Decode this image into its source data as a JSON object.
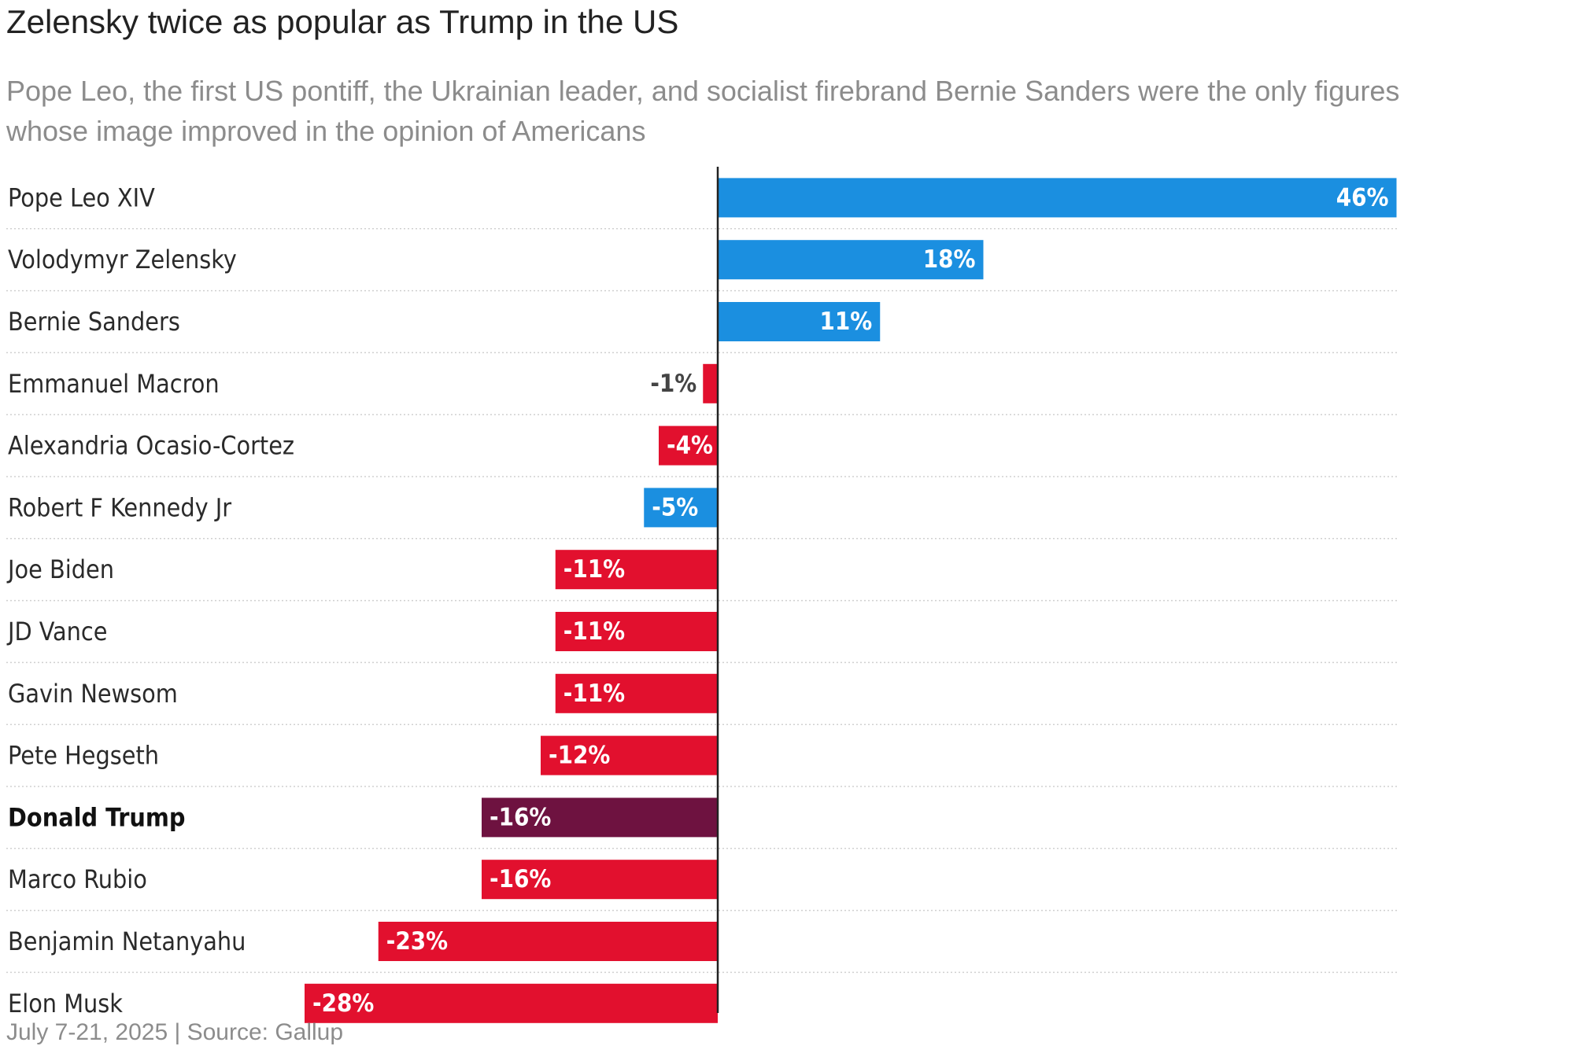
{
  "chart_data": {
    "type": "bar",
    "orientation": "horizontal",
    "title": "Zelensky twice as popular as Trump in the US",
    "subtitle": "Pope Leo, the first US pontiff, the Ukrainian leader, and socialist firebrand Bernie Sanders were the only figures whose image improved in the opinion of Americans",
    "footer": "July 7-21, 2025 | Source: Gallup",
    "value_format": "%",
    "grid": false,
    "categories": [
      "Pope Leo XIV",
      "Volodymyr Zelensky",
      "Bernie Sanders",
      "Emmanuel Macron",
      "Alexandria Ocasio-Cortez",
      "Robert F Kennedy Jr",
      "Joe Biden",
      "JD Vance",
      "Gavin Newsom",
      "Pete Hegseth",
      "Donald Trump",
      "Marco Rubio",
      "Benjamin Netanyahu",
      "Elon Musk"
    ],
    "values": [
      46,
      18,
      11,
      -1,
      -4,
      -5,
      -11,
      -11,
      -11,
      -12,
      -16,
      -16,
      -23,
      -28
    ],
    "value_labels": [
      "46%",
      "18%",
      "11%",
      "-1%",
      "-4%",
      "-5%",
      "-11%",
      "-11%",
      "-11%",
      "-12%",
      "-16%",
      "-16%",
      "-23%",
      "-28%"
    ],
    "bar_colors": [
      "#1b8fe0",
      "#1b8fe0",
      "#1b8fe0",
      "#e2102e",
      "#e2102e",
      "#1b8fe0",
      "#e2102e",
      "#e2102e",
      "#e2102e",
      "#e2102e",
      "#6e1240",
      "#e2102e",
      "#e2102e",
      "#e2102e"
    ],
    "highlighted_category": "Donald Trump",
    "colors": {
      "positive": "#1b8fe0",
      "negative": "#e2102e",
      "highlight": "#6e1240"
    }
  }
}
